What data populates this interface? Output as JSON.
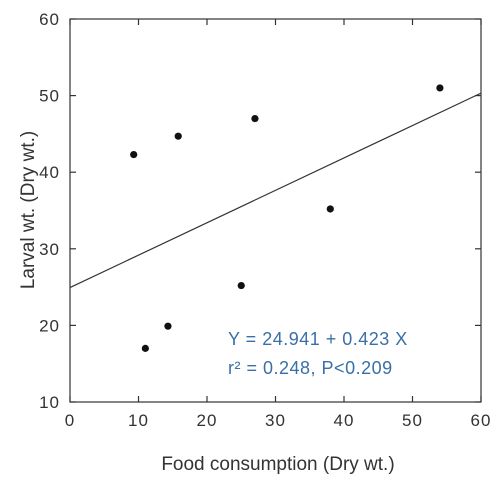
{
  "chart_data": {
    "type": "scatter",
    "xlabel": "Food consumption (Dry wt.)",
    "ylabel": "Larval wt. (Dry wt.)",
    "xlim": [
      0,
      60
    ],
    "ylim": [
      10,
      60
    ],
    "xticks": [
      0,
      10,
      20,
      30,
      40,
      50,
      60
    ],
    "yticks": [
      10,
      20,
      30,
      40,
      50,
      60
    ],
    "points": [
      {
        "x": 9.3,
        "y": 42.3
      },
      {
        "x": 11.0,
        "y": 17.0
      },
      {
        "x": 14.3,
        "y": 19.9
      },
      {
        "x": 15.8,
        "y": 44.7
      },
      {
        "x": 25.0,
        "y": 25.2
      },
      {
        "x": 27.0,
        "y": 47.0
      },
      {
        "x": 38.0,
        "y": 35.2
      },
      {
        "x": 54.0,
        "y": 51.0
      }
    ],
    "regression": {
      "intercept": 24.941,
      "slope": 0.423
    },
    "annotations": {
      "equation": "Y = 24.941 + 0.423 X",
      "stats": "r² = 0.248, P<0.209",
      "color": "#3a6fa8"
    },
    "grid": false,
    "point_color": "#111111",
    "line_color": "#333333"
  }
}
